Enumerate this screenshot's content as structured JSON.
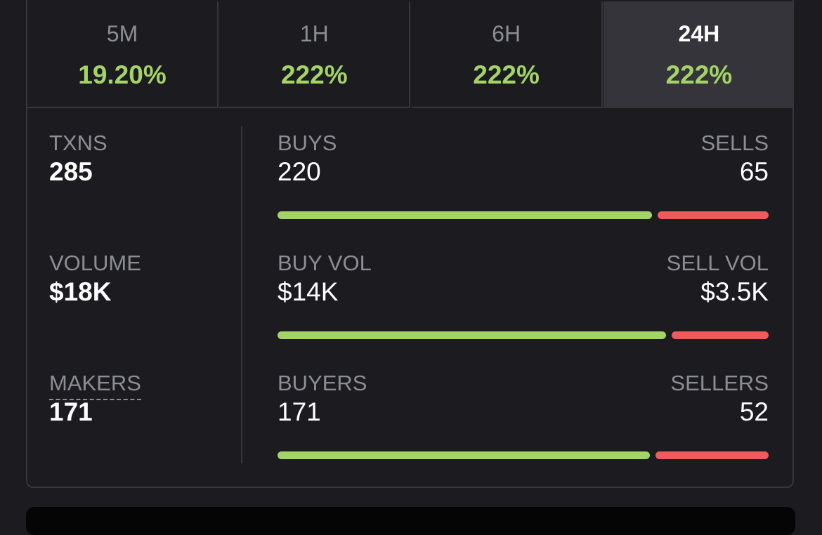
{
  "tabs": [
    {
      "label": "5M",
      "change": "19.20%"
    },
    {
      "label": "1H",
      "change": "222%"
    },
    {
      "label": "6H",
      "change": "222%"
    },
    {
      "label": "24H",
      "change": "222%"
    }
  ],
  "stats": [
    {
      "label": "TXNS",
      "value": 285
    },
    {
      "label": "VOLUME",
      "value": {
        "value": 18000,
        "label": "$18K"
      }
    },
    {
      "label": "MAKERS",
      "value": 171
    }
  ],
  "split": [
    {
      "buy_label": "BUYS",
      "sell_label": "SELLS",
      "buy": 220,
      "sell": 65
    },
    {
      "buy_label": "BUY VOL",
      "sell_label": "SELL VOL",
      "buy": {
        "value": 14000,
        "label": "$14K"
      },
      "sell": {
        "value": 3500,
        "label": "$3.5K"
      }
    },
    {
      "buy_label": "BUYERS",
      "sell_label": "SELLERS",
      "buy": 171,
      "sell": 52
    }
  ]
}
